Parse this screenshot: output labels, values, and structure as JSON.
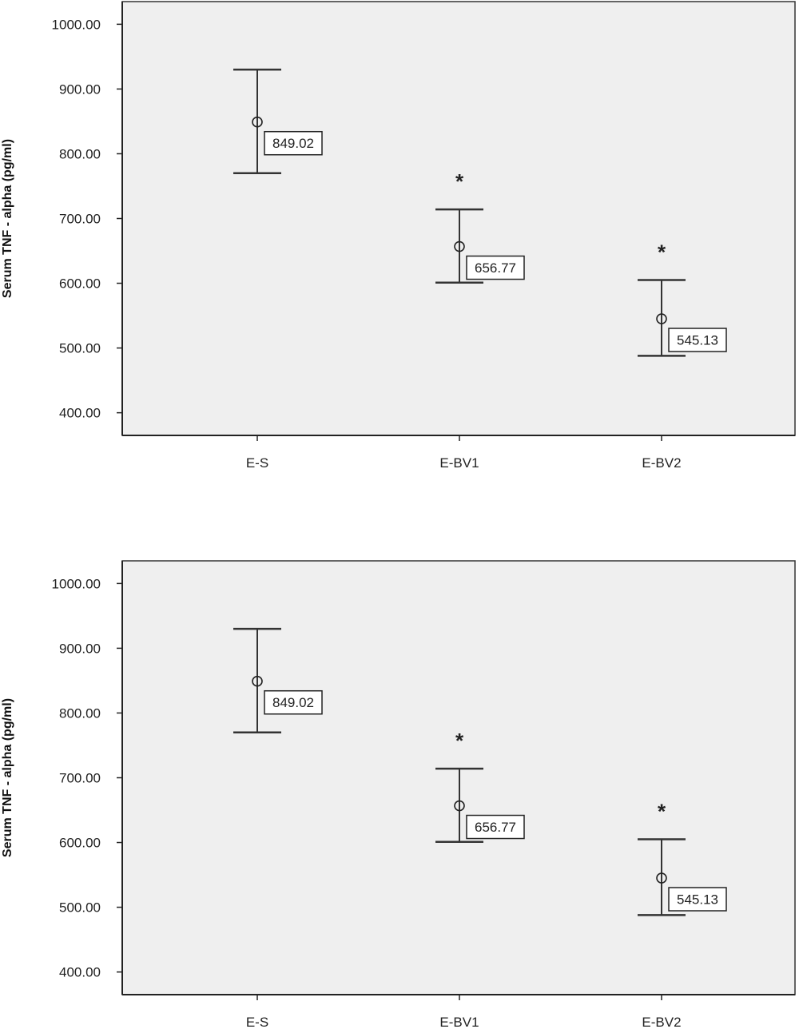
{
  "chart_data": [
    {
      "type": "errorbar",
      "ylabel": "Serum TNF - alpha (pg/ml)",
      "xlabel": "",
      "ylim": [
        365,
        1035
      ],
      "yticks": [
        400,
        500,
        600,
        700,
        800,
        900,
        1000
      ],
      "ytick_labels": [
        "400.00",
        "500.00",
        "600.00",
        "700.00",
        "800.00",
        "900.00",
        "1000.00"
      ],
      "categories": [
        "E-S",
        "E-BV1",
        "E-BV2"
      ],
      "means": [
        849.02,
        656.77,
        545.13
      ],
      "mean_labels": [
        "849.02",
        "656.77",
        "545.13"
      ],
      "upper": [
        930,
        714,
        605
      ],
      "lower": [
        770,
        601,
        488
      ],
      "significance": [
        "",
        "*",
        "*"
      ],
      "grid": false,
      "background": "#efefef"
    },
    {
      "type": "errorbar",
      "ylabel": "Serum TNF - alpha (pg/ml)",
      "xlabel": "",
      "ylim": [
        365,
        1035
      ],
      "yticks": [
        400,
        500,
        600,
        700,
        800,
        900,
        1000
      ],
      "ytick_labels": [
        "400.00",
        "500.00",
        "600.00",
        "700.00",
        "800.00",
        "900.00",
        "1000.00"
      ],
      "categories": [
        "E-S",
        "E-BV1",
        "E-BV2"
      ],
      "means": [
        849.02,
        656.77,
        545.13
      ],
      "mean_labels": [
        "849.02",
        "656.77",
        "545.13"
      ],
      "upper": [
        930,
        714,
        605
      ],
      "lower": [
        770,
        601,
        488
      ],
      "significance": [
        "",
        "*",
        "*"
      ],
      "grid": false,
      "background": "#efefef"
    }
  ]
}
